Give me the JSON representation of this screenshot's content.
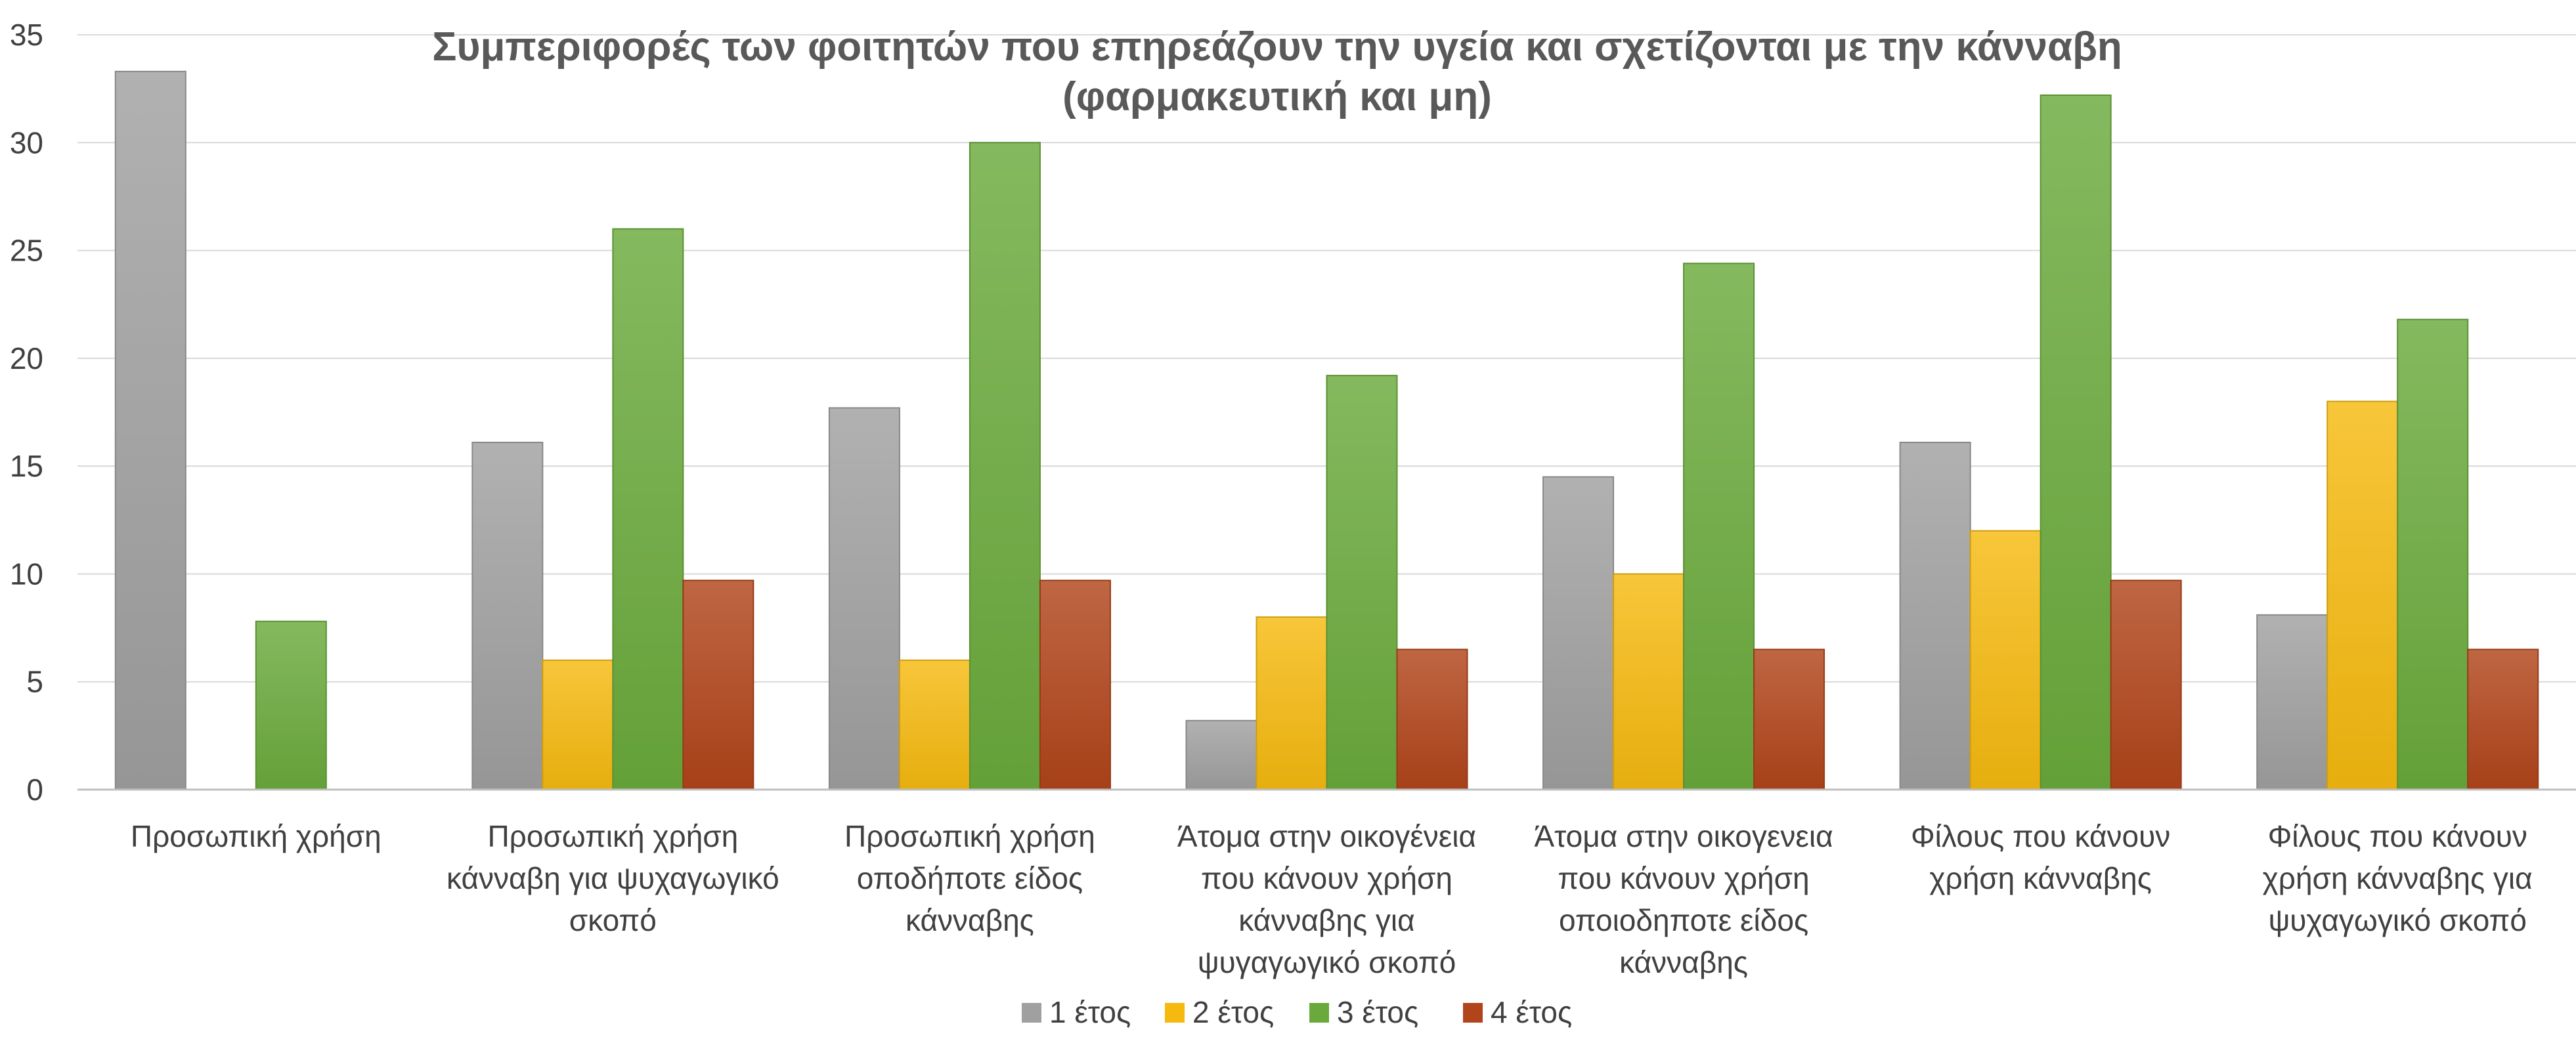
{
  "chart_data": {
    "type": "bar",
    "title": "Συμπεριφορές  των φοιτητών που επηρεάζουν την υγεία και σχετίζονται με την κάνναβη (φαρμακευτική και μη)",
    "title_lines": [
      "Συμπεριφορές  των φοιτητών που επηρεάζουν την υγεία και σχετίζονται με την κάνναβη",
      "(φαρμακευτική και μη)"
    ],
    "xlabel": "",
    "ylabel": "",
    "ylim": [
      0,
      35
    ],
    "yticks": [
      0,
      5,
      10,
      15,
      20,
      25,
      30,
      35
    ],
    "grid": true,
    "legend_position": "bottom",
    "categories": [
      "Προσωπική χρήση",
      "Προσωπική χρήση κάνναβη για ψυχαγωγικό σκοπό",
      "Προσωπική χρήση οποδήποτε είδος κάνναβης",
      "Άτομα στην οικογένεια που κάνουν χρήση κάνναβης για ψυγαγωγικό σκοπό",
      "Άτομα στην οικογενεια που κάνουν χρήση οποιοδηποτε είδος κάνναβης",
      "Φίλους που κάνουν χρήση κάνναβης",
      "Φίλους που κάνουν χρήση κάνναβης για ψυχαγωγικό σκοπό"
    ],
    "category_lines": [
      [
        "Προσωπική χρήση"
      ],
      [
        "Προσωπική χρήση",
        "κάνναβη για ψυχαγωγικό",
        "σκοπό"
      ],
      [
        "Προσωπική χρήση",
        "οποδήποτε είδος",
        "κάνναβης"
      ],
      [
        "Άτομα στην οικογένεια",
        "που κάνουν χρήση",
        "κάνναβης για",
        "ψυγαγωγικό σκοπό"
      ],
      [
        "Άτομα στην οικογενεια",
        "που κάνουν χρήση",
        "οποιοδηποτε είδος",
        "κάνναβης"
      ],
      [
        "Φίλους που κάνουν",
        "χρήση κάνναβης"
      ],
      [
        "Φίλους που κάνουν",
        "χρήση κάνναβης για",
        "ψυχαγωγικό σκοπό"
      ]
    ],
    "series": [
      {
        "name": "1 έτος",
        "color": "#a0a0a0",
        "values": [
          33.3,
          16.1,
          17.7,
          3.2,
          14.5,
          16.1,
          8.1
        ]
      },
      {
        "name": "2 έτος",
        "color": "#f5b90f",
        "values": [
          0,
          6.0,
          6.0,
          8.0,
          10.0,
          12.0,
          18.0
        ]
      },
      {
        "name": "3 έτος",
        "color": "#6aaa3c",
        "values": [
          7.8,
          26.0,
          30.0,
          19.2,
          24.4,
          32.2,
          21.8
        ]
      },
      {
        "name": "4 έτος",
        "color": "#b1441a",
        "values": [
          0,
          9.7,
          9.7,
          6.5,
          6.5,
          9.7,
          6.5
        ]
      }
    ]
  }
}
